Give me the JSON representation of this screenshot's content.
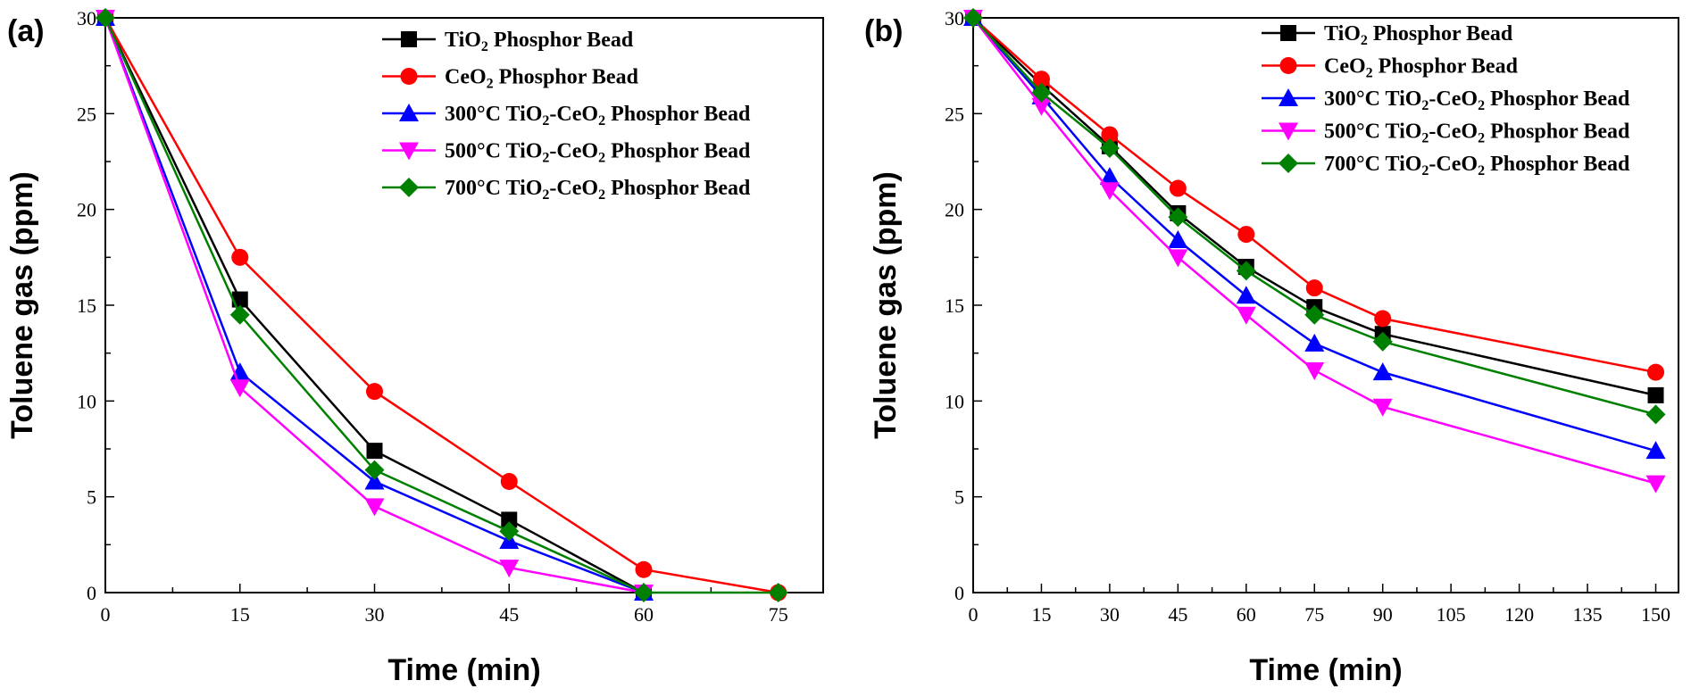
{
  "chart_data": [
    {
      "panel": "(a)",
      "type": "line",
      "xlabel": "Time (min)",
      "ylabel": "Toluene gas (ppm)",
      "xlim": [
        0,
        80
      ],
      "ylim": [
        0,
        30
      ],
      "xticks": [
        0,
        15,
        30,
        45,
        60,
        75
      ],
      "yticks": [
        0,
        5,
        10,
        15,
        20,
        25,
        30
      ],
      "legend": "top-right",
      "series": [
        {
          "name": "TiO2 Phosphor Bead",
          "name_parts": [
            [
              "TiO",
              ""
            ],
            [
              "2",
              "sub"
            ],
            [
              " Phosphor Bead",
              ""
            ]
          ],
          "color": "#000000",
          "marker": "square",
          "x": [
            0,
            15,
            30,
            45,
            60
          ],
          "y": [
            30,
            15.3,
            7.4,
            3.8,
            0
          ]
        },
        {
          "name": "CeO2 Phosphor Bead",
          "name_parts": [
            [
              "CeO",
              ""
            ],
            [
              "2",
              "sub"
            ],
            [
              " Phosphor Bead",
              ""
            ]
          ],
          "color": "#ff0000",
          "marker": "circle",
          "x": [
            0,
            15,
            30,
            45,
            60,
            75
          ],
          "y": [
            30,
            17.5,
            10.5,
            5.8,
            1.2,
            0
          ]
        },
        {
          "name": "300°C TiO2-CeO2 Phosphor Bead",
          "name_parts": [
            [
              "300°C TiO",
              ""
            ],
            [
              "2",
              "sub"
            ],
            [
              "-CeO",
              ""
            ],
            [
              "2",
              "sub"
            ],
            [
              " Phosphor Bead",
              ""
            ]
          ],
          "color": "#0000ff",
          "marker": "triangle-up",
          "x": [
            0,
            15,
            30,
            45,
            60
          ],
          "y": [
            30,
            11.5,
            5.8,
            2.7,
            0
          ]
        },
        {
          "name": "500°C TiO2-CeO2 Phosphor Bead",
          "name_parts": [
            [
              "500°C TiO",
              ""
            ],
            [
              "2",
              "sub"
            ],
            [
              "-CeO",
              ""
            ],
            [
              "2",
              "sub"
            ],
            [
              " Phosphor Bead",
              ""
            ]
          ],
          "color": "#ff00ff",
          "marker": "triangle-down",
          "x": [
            0,
            15,
            30,
            45,
            60
          ],
          "y": [
            30,
            10.7,
            4.5,
            1.3,
            0
          ]
        },
        {
          "name": "700°C TiO2-CeO2 Phosphor Bead",
          "name_parts": [
            [
              "700°C TiO",
              ""
            ],
            [
              "2",
              "sub"
            ],
            [
              "-CeO",
              ""
            ],
            [
              "2",
              "sub"
            ],
            [
              " Phosphor Bead",
              ""
            ]
          ],
          "color": "#008000",
          "marker": "diamond",
          "x": [
            0,
            15,
            30,
            45,
            60,
            75
          ],
          "y": [
            30,
            14.5,
            6.4,
            3.2,
            0,
            0
          ]
        }
      ]
    },
    {
      "panel": "(b)",
      "type": "line",
      "xlabel": "Time (min)",
      "ylabel": "Toluene gas (ppm)",
      "xlim": [
        0,
        155
      ],
      "ylim": [
        0,
        30
      ],
      "xticks": [
        0,
        15,
        30,
        45,
        60,
        75,
        90,
        105,
        120,
        135,
        150
      ],
      "yticks": [
        0,
        5,
        10,
        15,
        20,
        25,
        30
      ],
      "legend": "top-right",
      "series": [
        {
          "name": "TiO2 Phosphor Bead",
          "name_parts": [
            [
              "TiO",
              ""
            ],
            [
              "2",
              "sub"
            ],
            [
              " Phosphor Bead",
              ""
            ]
          ],
          "color": "#000000",
          "marker": "square",
          "x": [
            0,
            15,
            30,
            45,
            60,
            75,
            90,
            150
          ],
          "y": [
            30,
            26.5,
            23.3,
            19.8,
            17.0,
            14.9,
            13.5,
            10.3
          ]
        },
        {
          "name": "CeO2 Phosphor Bead",
          "name_parts": [
            [
              "CeO",
              ""
            ],
            [
              "2",
              "sub"
            ],
            [
              " Phosphor Bead",
              ""
            ]
          ],
          "color": "#ff0000",
          "marker": "circle",
          "x": [
            0,
            15,
            30,
            45,
            60,
            75,
            90,
            150
          ],
          "y": [
            30,
            26.8,
            23.9,
            21.1,
            18.7,
            15.9,
            14.3,
            11.5
          ]
        },
        {
          "name": "300°C TiO2-CeO2 Phosphor Bead",
          "name_parts": [
            [
              "300°C TiO",
              ""
            ],
            [
              "2",
              "sub"
            ],
            [
              "-CeO",
              ""
            ],
            [
              "2",
              "sub"
            ],
            [
              " Phosphor Bead",
              ""
            ]
          ],
          "color": "#0000ff",
          "marker": "triangle-up",
          "x": [
            0,
            15,
            30,
            45,
            60,
            75,
            90,
            150
          ],
          "y": [
            30,
            25.9,
            21.7,
            18.4,
            15.5,
            13.0,
            11.5,
            7.4
          ]
        },
        {
          "name": "500°C TiO2-CeO2 Phosphor Bead",
          "name_parts": [
            [
              "500°C TiO",
              ""
            ],
            [
              "2",
              "sub"
            ],
            [
              "-CeO",
              ""
            ],
            [
              "2",
              "sub"
            ],
            [
              " Phosphor Bead",
              ""
            ]
          ],
          "color": "#ff00ff",
          "marker": "triangle-down",
          "x": [
            0,
            15,
            30,
            45,
            60,
            75,
            90,
            150
          ],
          "y": [
            30,
            25.4,
            21.0,
            17.5,
            14.5,
            11.6,
            9.7,
            5.7
          ]
        },
        {
          "name": "700°C TiO2-CeO2 Phosphor Bead",
          "name_parts": [
            [
              "700°C TiO",
              ""
            ],
            [
              "2",
              "sub"
            ],
            [
              "-CeO",
              ""
            ],
            [
              "2",
              "sub"
            ],
            [
              " Phosphor Bead",
              ""
            ]
          ],
          "color": "#008000",
          "marker": "diamond",
          "x": [
            0,
            15,
            30,
            45,
            60,
            75,
            90,
            150
          ],
          "y": [
            30,
            26.1,
            23.2,
            19.6,
            16.8,
            14.5,
            13.1,
            9.3
          ]
        }
      ]
    }
  ]
}
